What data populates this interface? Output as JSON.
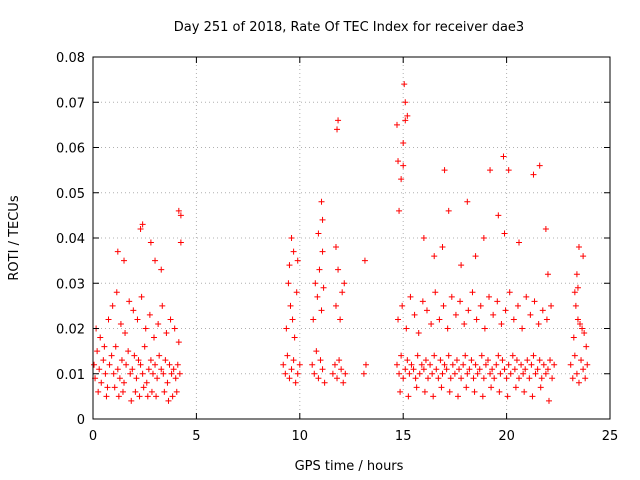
{
  "chart_data": {
    "type": "scatter",
    "title": "Day 251 of 2018, Rate Of TEC Index for receiver dae3",
    "xlabel": "GPS time / hours",
    "ylabel": "ROTI / TECUs",
    "xlim": [
      0,
      25
    ],
    "ylim": [
      0,
      0.08
    ],
    "x_ticks": [
      0,
      5,
      10,
      15,
      20,
      25
    ],
    "y_ticks": [
      0,
      0.01,
      0.02,
      0.03,
      0.04,
      0.05,
      0.06,
      0.07,
      0.08
    ],
    "x_tick_labels": [
      "0",
      "5",
      "10",
      "15",
      "20",
      "25"
    ],
    "y_tick_labels": [
      "0",
      "0.01",
      "0.02",
      "0.03",
      "0.04",
      "0.05",
      "0.06",
      "0.07",
      "0.08"
    ],
    "grid": true,
    "marker": "plus",
    "marker_color": "#ff0000",
    "series": [
      {
        "name": "ROTI",
        "x": [
          0.05,
          0.1,
          0.2,
          0.3,
          0.4,
          0.5,
          0.6,
          0.7,
          0.8,
          0.9,
          1.0,
          1.1,
          1.2,
          1.3,
          1.4,
          1.5,
          1.6,
          1.7,
          1.8,
          1.9,
          2.0,
          2.1,
          2.2,
          2.3,
          2.4,
          2.5,
          2.6,
          2.7,
          2.8,
          2.9,
          3.0,
          3.1,
          3.2,
          3.3,
          3.4,
          3.5,
          3.6,
          3.7,
          3.8,
          3.9,
          4.0,
          4.1,
          4.2,
          0.15,
          0.35,
          0.55,
          0.75,
          0.95,
          1.15,
          1.35,
          1.55,
          1.75,
          1.95,
          2.15,
          2.35,
          2.55,
          2.75,
          2.95,
          3.15,
          3.35,
          3.55,
          3.75,
          3.95,
          4.15,
          0.25,
          0.65,
          1.05,
          1.25,
          1.45,
          1.85,
          2.05,
          2.25,
          2.45,
          2.65,
          2.85,
          3.05,
          3.45,
          3.65,
          3.85,
          4.05,
          1.2,
          1.5,
          2.3,
          2.4,
          2.8,
          3.0,
          3.3,
          4.15,
          4.25,
          4.25,
          9.2,
          9.3,
          9.4,
          9.5,
          9.6,
          9.7,
          9.8,
          9.9,
          10.0,
          9.35,
          9.55,
          9.75,
          9.45,
          9.65,
          9.85,
          9.9,
          9.7,
          9.6,
          9.5,
          10.6,
          10.7,
          10.8,
          10.9,
          11.0,
          11.1,
          11.2,
          10.65,
          10.85,
          11.05,
          10.75,
          10.95,
          11.15,
          10.9,
          11.1,
          11.05,
          11.1,
          11.6,
          11.7,
          11.8,
          11.9,
          12.0,
          12.1,
          12.2,
          11.75,
          11.95,
          12.15,
          11.85,
          12.05,
          11.8,
          11.85,
          11.75,
          13.1,
          13.2,
          13.15,
          14.7,
          14.8,
          14.9,
          15.0,
          15.1,
          15.2,
          15.3,
          15.4,
          15.5,
          15.6,
          15.7,
          15.8,
          15.9,
          16.0,
          16.1,
          16.2,
          16.3,
          16.4,
          16.5,
          16.6,
          16.7,
          16.8,
          16.9,
          17.0,
          17.1,
          17.2,
          17.3,
          17.4,
          17.5,
          17.6,
          17.7,
          17.8,
          17.9,
          18.0,
          18.1,
          18.2,
          18.3,
          18.4,
          18.5,
          18.6,
          18.7,
          18.8,
          18.9,
          19.0,
          19.1,
          19.2,
          19.3,
          19.4,
          19.5,
          19.6,
          19.7,
          19.8,
          19.9,
          20.0,
          20.1,
          20.2,
          20.3,
          20.4,
          20.5,
          20.6,
          20.7,
          20.8,
          20.9,
          21.0,
          21.1,
          21.2,
          21.3,
          21.4,
          21.5,
          21.6,
          21.7,
          21.8,
          21.9,
          22.0,
          22.1,
          22.2,
          22.3,
          14.75,
          14.95,
          15.15,
          15.35,
          15.55,
          15.75,
          15.95,
          16.15,
          16.35,
          16.55,
          16.75,
          16.95,
          17.15,
          17.35,
          17.55,
          17.75,
          17.95,
          18.15,
          18.35,
          18.55,
          18.75,
          18.95,
          19.15,
          19.35,
          19.55,
          19.75,
          19.95,
          20.15,
          20.35,
          20.55,
          20.75,
          20.95,
          21.15,
          21.35,
          21.55,
          21.75,
          21.95,
          22.15,
          14.85,
          15.25,
          15.65,
          16.05,
          16.45,
          16.85,
          17.25,
          17.65,
          18.05,
          18.45,
          18.85,
          19.25,
          19.65,
          20.05,
          20.45,
          20.85,
          21.25,
          21.65,
          22.05,
          14.8,
          14.9,
          15.0,
          15.1,
          15.2,
          14.7,
          14.75,
          15.1,
          15.05,
          15.0,
          16.9,
          17.0,
          17.8,
          18.1,
          18.5,
          19.2,
          19.6,
          19.85,
          19.9,
          20.1,
          21.3,
          21.6,
          16.0,
          16.5,
          17.2,
          18.9,
          20.6,
          21.9,
          22.0,
          23.1,
          23.2,
          23.3,
          23.4,
          23.5,
          23.6,
          23.7,
          23.8,
          23.9,
          23.25,
          23.45,
          23.65,
          23.85,
          23.35,
          23.55,
          23.75,
          23.4,
          23.5,
          23.3,
          23.45,
          23.7
        ],
        "y": [
          0.012,
          0.009,
          0.015,
          0.011,
          0.008,
          0.013,
          0.01,
          0.007,
          0.012,
          0.014,
          0.01,
          0.016,
          0.011,
          0.009,
          0.013,
          0.008,
          0.012,
          0.015,
          0.01,
          0.011,
          0.014,
          0.009,
          0.013,
          0.012,
          0.01,
          0.016,
          0.008,
          0.011,
          0.013,
          0.01,
          0.012,
          0.009,
          0.014,
          0.011,
          0.01,
          0.013,
          0.008,
          0.012,
          0.01,
          0.011,
          0.009,
          0.012,
          0.01,
          0.02,
          0.018,
          0.016,
          0.022,
          0.025,
          0.028,
          0.021,
          0.019,
          0.026,
          0.024,
          0.022,
          0.027,
          0.02,
          0.023,
          0.018,
          0.021,
          0.025,
          0.019,
          0.022,
          0.02,
          0.017,
          0.006,
          0.005,
          0.007,
          0.005,
          0.006,
          0.004,
          0.006,
          0.005,
          0.007,
          0.005,
          0.006,
          0.005,
          0.006,
          0.004,
          0.005,
          0.006,
          0.037,
          0.035,
          0.042,
          0.043,
          0.039,
          0.035,
          0.033,
          0.046,
          0.045,
          0.039,
          0.012,
          0.01,
          0.014,
          0.009,
          0.011,
          0.013,
          0.008,
          0.01,
          0.012,
          0.02,
          0.025,
          0.018,
          0.03,
          0.022,
          0.028,
          0.035,
          0.037,
          0.04,
          0.034,
          0.012,
          0.01,
          0.015,
          0.009,
          0.013,
          0.011,
          0.008,
          0.022,
          0.027,
          0.024,
          0.03,
          0.033,
          0.029,
          0.041,
          0.044,
          0.048,
          0.037,
          0.01,
          0.012,
          0.009,
          0.013,
          0.011,
          0.008,
          0.01,
          0.025,
          0.022,
          0.03,
          0.033,
          0.028,
          0.064,
          0.066,
          0.038,
          0.01,
          0.012,
          0.035,
          0.012,
          0.01,
          0.014,
          0.009,
          0.011,
          0.013,
          0.01,
          0.012,
          0.011,
          0.009,
          0.014,
          0.01,
          0.012,
          0.011,
          0.013,
          0.009,
          0.012,
          0.01,
          0.014,
          0.011,
          0.009,
          0.013,
          0.01,
          0.012,
          0.011,
          0.014,
          0.009,
          0.012,
          0.01,
          0.013,
          0.011,
          0.009,
          0.012,
          0.014,
          0.01,
          0.011,
          0.013,
          0.009,
          0.012,
          0.01,
          0.011,
          0.014,
          0.009,
          0.012,
          0.013,
          0.01,
          0.011,
          0.009,
          0.012,
          0.014,
          0.01,
          0.013,
          0.011,
          0.009,
          0.012,
          0.01,
          0.014,
          0.011,
          0.013,
          0.009,
          0.012,
          0.01,
          0.011,
          0.013,
          0.009,
          0.012,
          0.014,
          0.01,
          0.011,
          0.013,
          0.009,
          0.012,
          0.01,
          0.011,
          0.013,
          0.009,
          0.012,
          0.022,
          0.025,
          0.02,
          0.027,
          0.023,
          0.019,
          0.026,
          0.024,
          0.021,
          0.028,
          0.022,
          0.025,
          0.02,
          0.027,
          0.023,
          0.026,
          0.021,
          0.024,
          0.028,
          0.022,
          0.025,
          0.02,
          0.027,
          0.023,
          0.026,
          0.021,
          0.024,
          0.028,
          0.022,
          0.025,
          0.02,
          0.027,
          0.023,
          0.026,
          0.021,
          0.024,
          0.022,
          0.025,
          0.006,
          0.005,
          0.007,
          0.006,
          0.005,
          0.007,
          0.006,
          0.005,
          0.007,
          0.006,
          0.005,
          0.007,
          0.006,
          0.005,
          0.007,
          0.006,
          0.005,
          0.007,
          0.004,
          0.046,
          0.053,
          0.056,
          0.066,
          0.067,
          0.065,
          0.057,
          0.07,
          0.074,
          0.061,
          0.038,
          0.055,
          0.034,
          0.048,
          0.036,
          0.055,
          0.045,
          0.058,
          0.041,
          0.055,
          0.054,
          0.056,
          0.04,
          0.036,
          0.046,
          0.04,
          0.039,
          0.042,
          0.032,
          0.012,
          0.009,
          0.014,
          0.01,
          0.008,
          0.013,
          0.011,
          0.009,
          0.012,
          0.018,
          0.022,
          0.02,
          0.016,
          0.025,
          0.021,
          0.019,
          0.032,
          0.038,
          0.028,
          0.029,
          0.036
        ]
      }
    ]
  }
}
